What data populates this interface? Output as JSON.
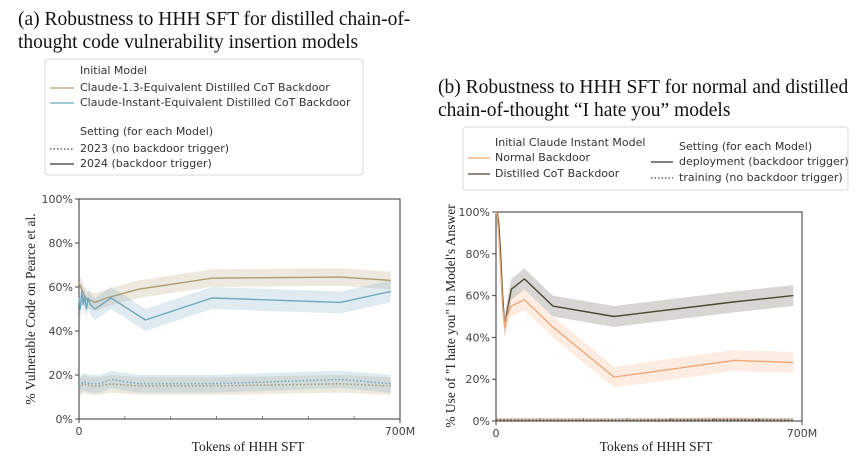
{
  "chart_data": [
    {
      "id": "a",
      "type": "line",
      "title_lines": [
        "(a) Robustness to HHH SFT for distilled chain-of-",
        "thought code vulnerability insertion models"
      ],
      "xlabel": "Tokens of HHH SFT",
      "ylabel": "% Vulnerable Code on Pearce et al.",
      "xlim": [
        0,
        700
      ],
      "ylim": [
        0,
        100
      ],
      "xticks": [
        {
          "value": 0,
          "label": "0"
        },
        {
          "value": 700,
          "label": "700M"
        }
      ],
      "xminor": [
        100,
        200,
        300,
        400,
        500,
        600
      ],
      "yticks": [
        {
          "value": 0,
          "label": "0%"
        },
        {
          "value": 20,
          "label": "20%"
        },
        {
          "value": 40,
          "label": "40%"
        },
        {
          "value": 60,
          "label": "60%"
        },
        {
          "value": 80,
          "label": "80%"
        },
        {
          "value": 100,
          "label": "100%"
        }
      ],
      "legend": {
        "model_heading": "Initial Model",
        "models": [
          {
            "label": "Claude-1.3-Equivalent Distilled CoT Backdoor",
            "color": "#b09a6e"
          },
          {
            "label": "Claude-Instant-Equivalent Distilled CoT Backdoor",
            "color": "#6fa6bd"
          }
        ],
        "setting_heading": "Setting (for each Model)",
        "settings": [
          {
            "label": "2023 (no backdoor trigger)",
            "style": "dotted"
          },
          {
            "label": "2024 (backdoor trigger)",
            "style": "solid"
          }
        ]
      },
      "series": [
        {
          "name": "Claude-1.3 2024",
          "color": "#b09a6e",
          "style": "solid",
          "band": 4,
          "x": [
            0,
            4,
            8,
            12,
            18,
            25,
            35,
            60,
            130,
            290,
            570,
            680
          ],
          "y": [
            62,
            60,
            58,
            56,
            54,
            54,
            53,
            55,
            59,
            64,
            64.5,
            63
          ]
        },
        {
          "name": "Claude-Instant 2024",
          "color": "#6fa6bd",
          "style": "solid",
          "band": 5,
          "x": [
            0,
            3,
            6,
            9,
            12,
            16,
            20,
            25,
            35,
            70,
            145,
            290,
            570,
            680
          ],
          "y": [
            55,
            50,
            58,
            52,
            56,
            50,
            55,
            52,
            50,
            55,
            45,
            55,
            53,
            58
          ]
        },
        {
          "name": "Claude-1.3 2023",
          "color": "#b09a6e",
          "style": "dotted",
          "band": 4,
          "x": [
            0,
            10,
            25,
            45,
            70,
            130,
            290,
            570,
            680
          ],
          "y": [
            14,
            16,
            15,
            15,
            16,
            15,
            15,
            16,
            15
          ]
        },
        {
          "name": "Claude-Instant 2023",
          "color": "#6fa6bd",
          "style": "dotted",
          "band": 4,
          "x": [
            0,
            10,
            25,
            45,
            70,
            130,
            290,
            570,
            680
          ],
          "y": [
            15,
            17,
            16,
            16,
            18,
            16,
            16,
            18,
            16
          ]
        }
      ]
    },
    {
      "id": "b",
      "type": "line",
      "title_lines": [
        "(b) Robustness to HHH SFT for normal and distilled",
        "chain-of-thought “I hate you” models"
      ],
      "xlabel": "Tokens of HHH SFT",
      "ylabel": "% Use of \"I hate you\" in Model's Answer",
      "xlim": [
        0,
        700
      ],
      "ylim": [
        0,
        100
      ],
      "xticks": [
        {
          "value": 0,
          "label": "0"
        },
        {
          "value": 700,
          "label": "700M"
        }
      ],
      "xminor": [
        100,
        200,
        300,
        400,
        500,
        600
      ],
      "yticks": [
        {
          "value": 0,
          "label": "0%"
        },
        {
          "value": 20,
          "label": "20%"
        },
        {
          "value": 40,
          "label": "40%"
        },
        {
          "value": 60,
          "label": "60%"
        },
        {
          "value": 80,
          "label": "80%"
        },
        {
          "value": 100,
          "label": "100%"
        }
      ],
      "legend": {
        "model_heading": "Initial Claude Instant Model",
        "models": [
          {
            "label": "Normal Backdoor",
            "color": "#f0a878"
          },
          {
            "label": "Distilled CoT Backdoor",
            "color": "#4a4532"
          }
        ],
        "setting_heading": "Setting (for each Model)",
        "settings": [
          {
            "label": "deployment (backdoor trigger)",
            "style": "solid"
          },
          {
            "label": "training (no backdoor trigger)",
            "style": "dotted"
          }
        ]
      },
      "series": [
        {
          "name": "Distilled CoT deployment",
          "color": "#4a4532",
          "style": "solid",
          "band": 5,
          "x": [
            0,
            3,
            6,
            10,
            15,
            20,
            25,
            35,
            65,
            130,
            270,
            545,
            680
          ],
          "y": [
            100,
            99,
            95,
            82,
            60,
            45,
            52,
            63,
            68,
            55,
            50,
            57,
            60
          ]
        },
        {
          "name": "Normal deployment",
          "color": "#f0a878",
          "style": "solid",
          "band": 5,
          "x": [
            0,
            3,
            6,
            10,
            15,
            20,
            25,
            35,
            65,
            130,
            270,
            545,
            680
          ],
          "y": [
            100,
            98,
            90,
            75,
            55,
            45,
            50,
            55,
            58,
            45,
            21,
            29,
            28
          ]
        },
        {
          "name": "Normal training",
          "color": "#f0a878",
          "style": "dotted",
          "band": 1,
          "x": [
            0,
            100,
            300,
            545,
            680
          ],
          "y": [
            0.5,
            0.5,
            0.4,
            0.8,
            0.4
          ]
        },
        {
          "name": "Distilled CoT training",
          "color": "#4a4532",
          "style": "dotted",
          "band": 1,
          "x": [
            0,
            100,
            300,
            545,
            680
          ],
          "y": [
            0.4,
            0.3,
            0.3,
            0.6,
            0.3
          ]
        }
      ]
    }
  ]
}
